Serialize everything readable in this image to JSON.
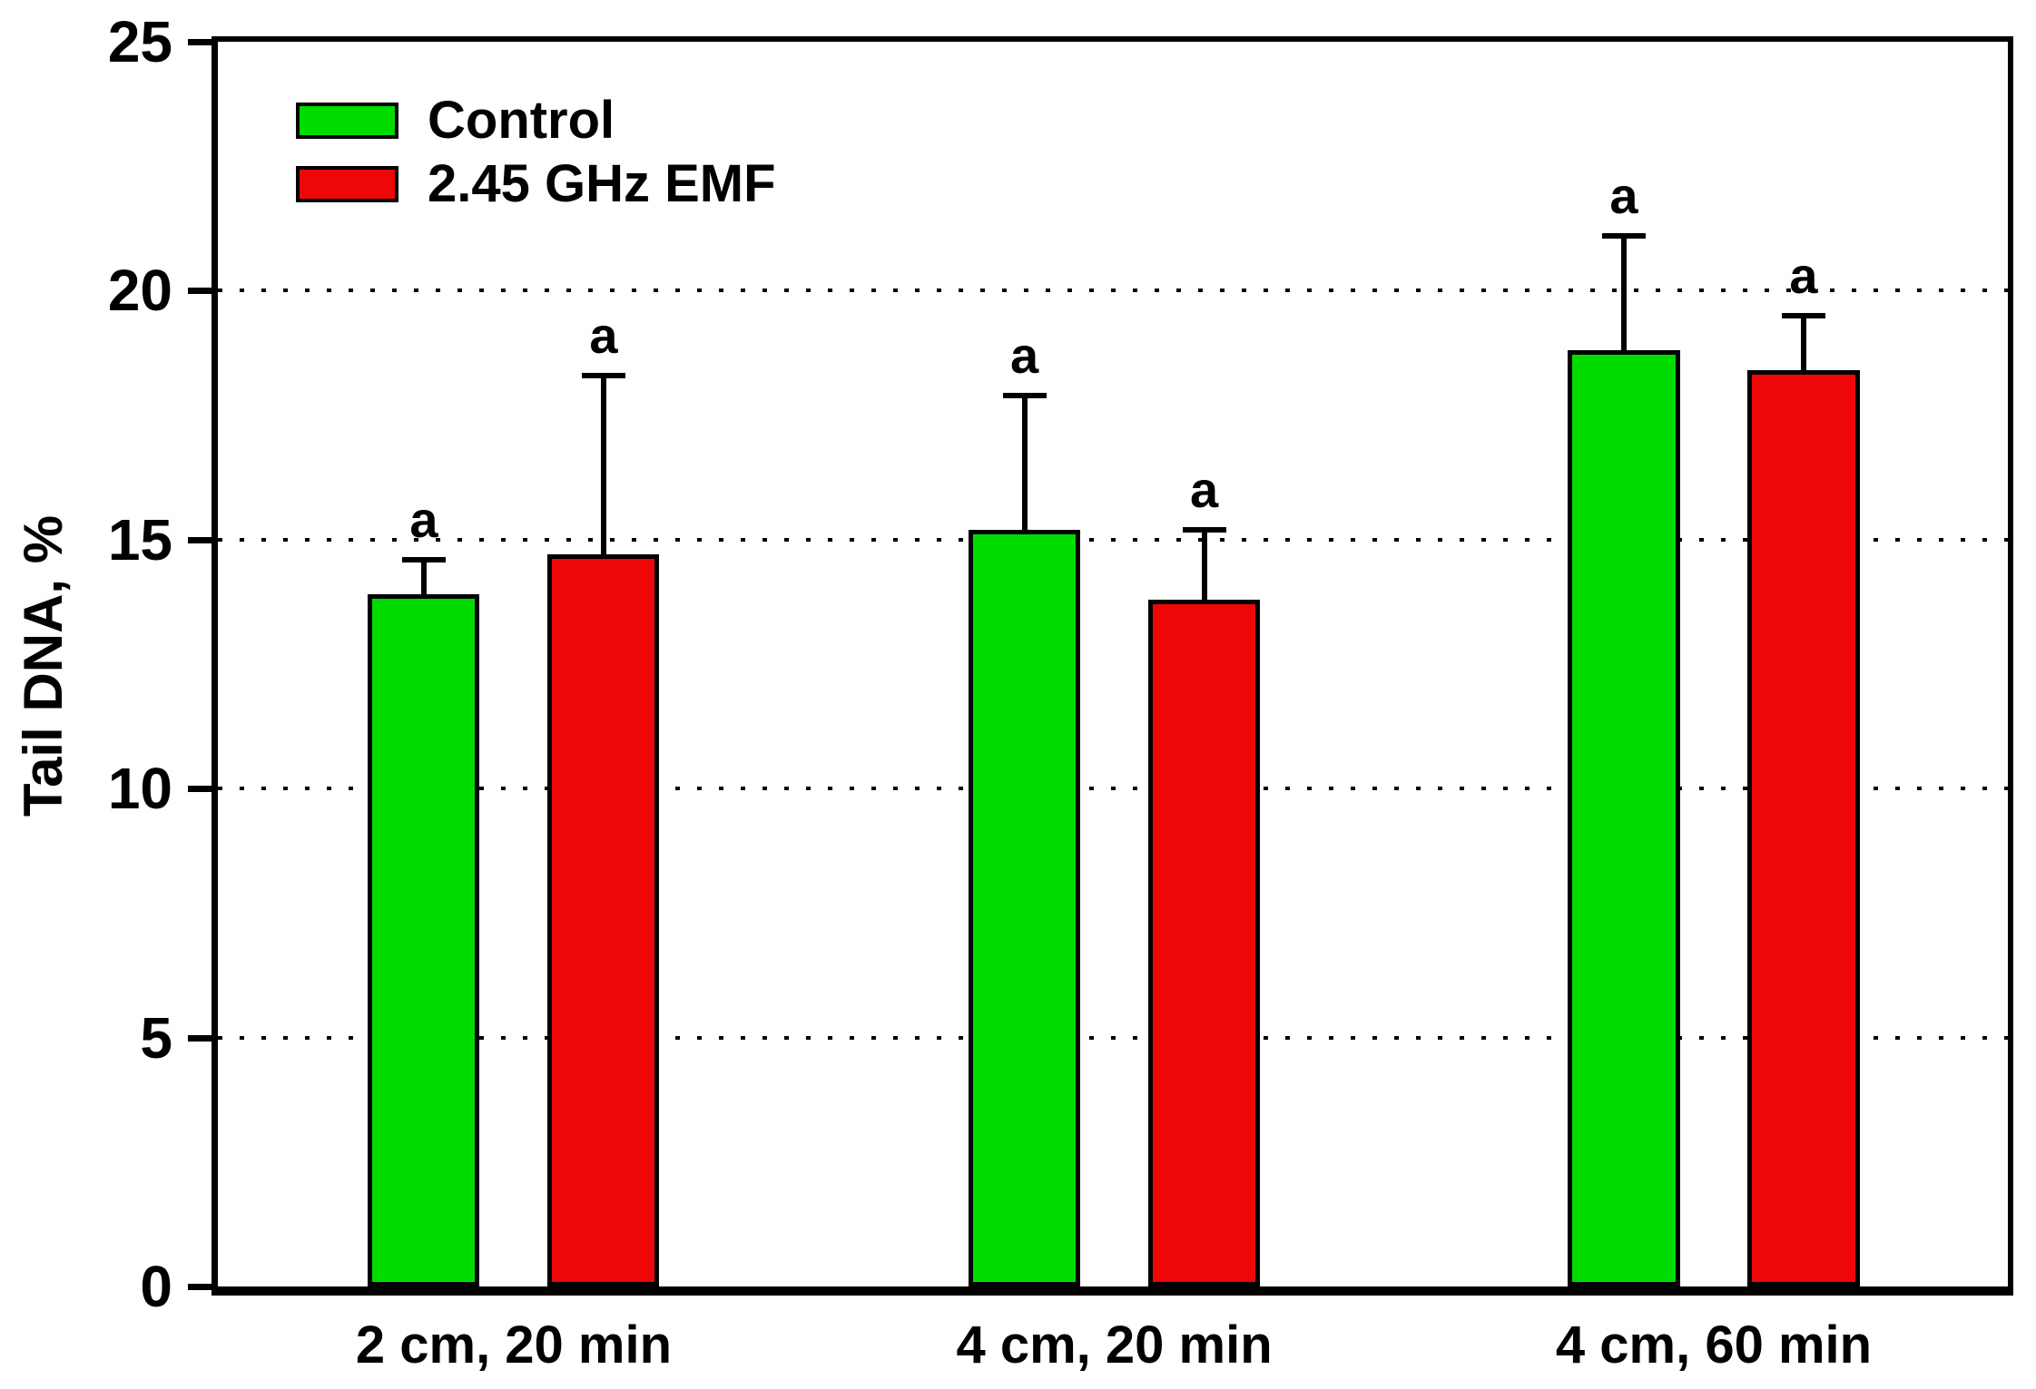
{
  "chart_data": {
    "type": "bar",
    "title": "",
    "ylabel": "Tail DNA, %",
    "xlabel": "",
    "ylim": [
      0,
      25
    ],
    "yticks": [
      0,
      5,
      10,
      15,
      20,
      25
    ],
    "gridlines_at": [
      5,
      10,
      15,
      20
    ],
    "grid_style": "dotted",
    "grid_on": true,
    "legend_position": "top-left-inside",
    "categories": [
      "2 cm, 20 min",
      "4 cm, 20 min",
      "4 cm, 60 min"
    ],
    "series": [
      {
        "name": "Control",
        "color": "#00DC00",
        "values": [
          13.9,
          15.2,
          18.8
        ],
        "error_plus": [
          0.7,
          2.7,
          2.3
        ],
        "point_labels": [
          "a",
          "a",
          "a"
        ]
      },
      {
        "name": "2.45 GHz EMF",
        "color": "#EE0707",
        "values": [
          14.7,
          13.8,
          18.4
        ],
        "error_plus": [
          3.6,
          1.4,
          1.1
        ],
        "point_labels": [
          "a",
          "a",
          "a"
        ]
      }
    ],
    "axis_color": "#000000",
    "error_bar_color": "#000000",
    "bar_border_color": "#000000"
  }
}
